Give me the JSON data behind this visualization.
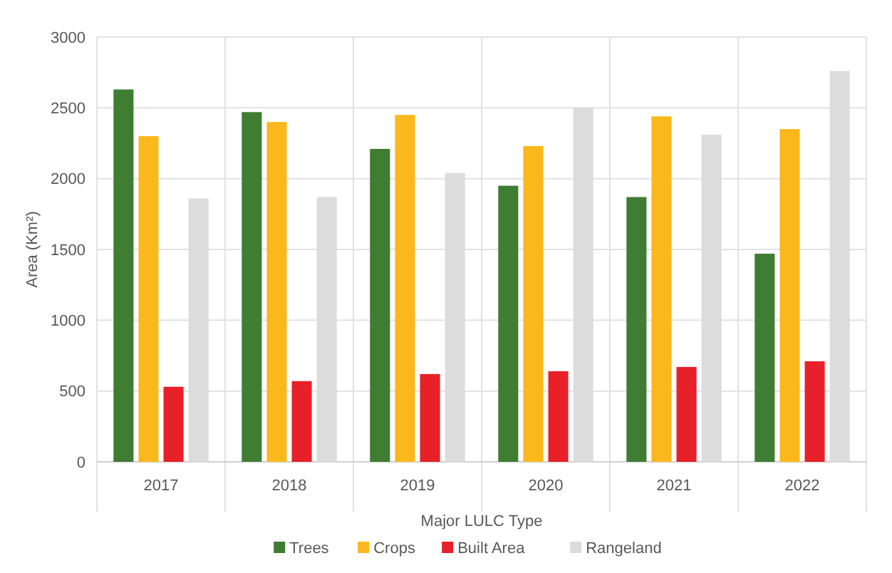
{
  "chart_data": {
    "type": "bar",
    "xlabel": "Major LULC Type",
    "ylabel": "Area (Km²)",
    "categories": [
      "2017",
      "2018",
      "2019",
      "2020",
      "2021",
      "2022"
    ],
    "series": [
      {
        "name": "Trees",
        "color": "#3e7d32",
        "values": [
          2630,
          2470,
          2210,
          1950,
          1870,
          1470
        ]
      },
      {
        "name": "Crops",
        "color": "#fbb81c",
        "values": [
          2300,
          2400,
          2450,
          2230,
          2440,
          2350
        ]
      },
      {
        "name": "Built Area",
        "color": "#e8202a",
        "values": [
          530,
          570,
          620,
          640,
          670,
          710
        ]
      },
      {
        "name": "Rangeland",
        "color": "#dcdcdc",
        "values": [
          1860,
          1870,
          2040,
          2500,
          2310,
          2760
        ]
      }
    ],
    "ylim": [
      0,
      3000
    ],
    "yticks": [
      0,
      500,
      1000,
      1500,
      2000,
      2500,
      3000
    ],
    "grid": true,
    "legend": "bottom"
  }
}
